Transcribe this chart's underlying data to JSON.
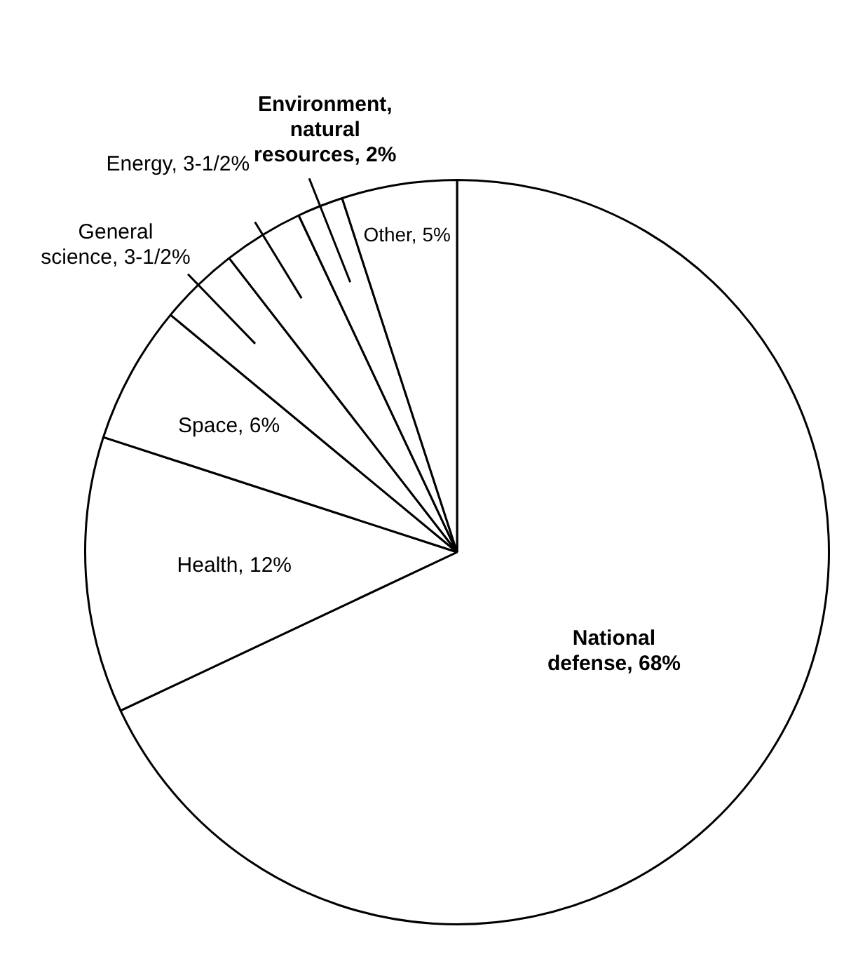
{
  "chart_data": {
    "type": "pie",
    "categories": [
      "National defense",
      "Health",
      "Space",
      "General science",
      "Energy",
      "Environment, natural resources",
      "Other"
    ],
    "values": [
      68,
      12,
      6,
      3.5,
      3.5,
      2,
      5
    ],
    "value_labels": [
      "68%",
      "12%",
      "6%",
      "3-1/2%",
      "3-1/2%",
      "2%",
      "5%"
    ],
    "colors": [
      "#ffffff",
      "#ffffff",
      "#ffffff",
      "#ffffff",
      "#ffffff",
      "#ffffff",
      "#ffffff"
    ],
    "legend": false
  }
}
